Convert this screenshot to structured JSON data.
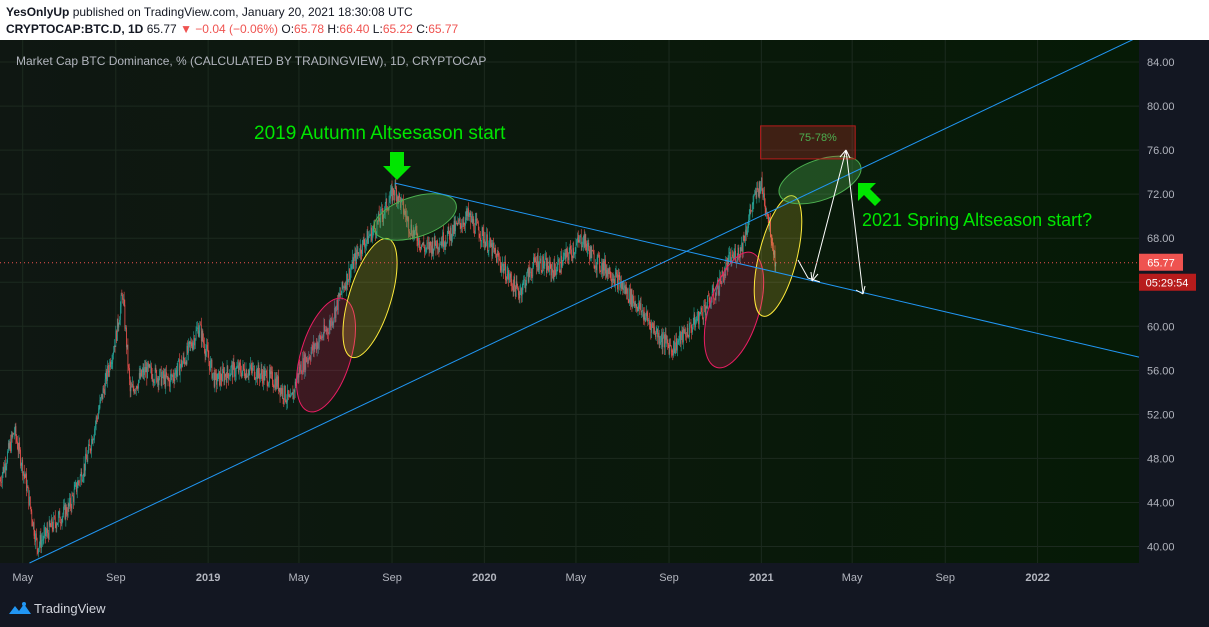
{
  "header": {
    "author": "YesOnlyUp",
    "published": "published on TradingView.com, January 20, 2021 18:30:08 UTC",
    "symbol": "CRYPTOCAP:BTC.D, 1D",
    "last": "65.77",
    "change": "−0.04 (−0.06%)",
    "o_label": "O:",
    "o": "65.78",
    "h_label": "H:",
    "h": "66.40",
    "l_label": "L:",
    "l": "65.22",
    "c_label": "C:",
    "c": "65.77"
  },
  "footer": {
    "brand": "TradingView"
  },
  "colors": {
    "bg": "#131722",
    "up": "#26a69a",
    "down": "#ef5350",
    "trend": "#2196f3",
    "annotation": "#00e600"
  },
  "chart_data": {
    "type": "candlestick",
    "title": "Market Cap BTC Dominance, % (CALCULATED BY TRADINGVIEW), 1D, CRYPTOCAP",
    "ylim": [
      38.5,
      86
    ],
    "yticks": [
      40,
      44,
      48,
      52,
      56,
      60,
      64,
      68,
      72,
      76,
      80,
      84
    ],
    "ytick_labels": [
      "40.00",
      "44.00",
      "48.00",
      "52.00",
      "56.00",
      "60.00",
      "64.00",
      "68.00",
      "72.00",
      "76.00",
      "80.00",
      "84.00"
    ],
    "xlim": [
      "2018-04-01",
      "2022-05-15"
    ],
    "xticks": [
      {
        "label": "May",
        "date": "2018-05-01",
        "bold": false
      },
      {
        "label": "Sep",
        "date": "2018-09-01",
        "bold": false
      },
      {
        "label": "2019",
        "date": "2019-01-01",
        "bold": true
      },
      {
        "label": "May",
        "date": "2019-05-01",
        "bold": false
      },
      {
        "label": "Sep",
        "date": "2019-09-01",
        "bold": false
      },
      {
        "label": "2020",
        "date": "2020-01-01",
        "bold": true
      },
      {
        "label": "May",
        "date": "2020-05-01",
        "bold": false
      },
      {
        "label": "Sep",
        "date": "2020-09-01",
        "bold": false
      },
      {
        "label": "2021",
        "date": "2021-01-01",
        "bold": true
      },
      {
        "label": "May",
        "date": "2021-05-01",
        "bold": false
      },
      {
        "label": "Sep",
        "date": "2021-09-01",
        "bold": false
      },
      {
        "label": "2022",
        "date": "2022-01-01",
        "bold": true
      }
    ],
    "price_path": [
      [
        "2018-04-01",
        46
      ],
      [
        "2018-04-20",
        50.5
      ],
      [
        "2018-05-05",
        46
      ],
      [
        "2018-05-20",
        40
      ],
      [
        "2018-06-10",
        42
      ],
      [
        "2018-07-01",
        43.5
      ],
      [
        "2018-07-25",
        48
      ],
      [
        "2018-08-15",
        54
      ],
      [
        "2018-09-01",
        59
      ],
      [
        "2018-09-10",
        63
      ],
      [
        "2018-09-20",
        54
      ],
      [
        "2018-10-10",
        56
      ],
      [
        "2018-11-10",
        55
      ],
      [
        "2018-12-01",
        57
      ],
      [
        "2018-12-20",
        60
      ],
      [
        "2019-01-10",
        55
      ],
      [
        "2019-02-01",
        56
      ],
      [
        "2019-03-01",
        56
      ],
      [
        "2019-04-01",
        55
      ],
      [
        "2019-04-20",
        53
      ],
      [
        "2019-05-01",
        56
      ],
      [
        "2019-05-20",
        58
      ],
      [
        "2019-06-10",
        60
      ],
      [
        "2019-07-01",
        64
      ],
      [
        "2019-07-20",
        67
      ],
      [
        "2019-08-10",
        69
      ],
      [
        "2019-08-25",
        71
      ],
      [
        "2019-09-05",
        72.5
      ],
      [
        "2019-09-25",
        69
      ],
      [
        "2019-10-15",
        67
      ],
      [
        "2019-11-10",
        68
      ],
      [
        "2019-12-10",
        70
      ],
      [
        "2020-01-01",
        68
      ],
      [
        "2020-01-20",
        66
      ],
      [
        "2020-02-15",
        63
      ],
      [
        "2020-03-10",
        66
      ],
      [
        "2020-04-01",
        65
      ],
      [
        "2020-05-10",
        68
      ],
      [
        "2020-05-25",
        66
      ],
      [
        "2020-06-15",
        65
      ],
      [
        "2020-07-20",
        62
      ],
      [
        "2020-08-20",
        59
      ],
      [
        "2020-09-05",
        58
      ],
      [
        "2020-10-01",
        60
      ],
      [
        "2020-11-01",
        63
      ],
      [
        "2020-11-20",
        66
      ],
      [
        "2020-12-05",
        67
      ],
      [
        "2020-12-20",
        71
      ],
      [
        "2020-12-31",
        73
      ],
      [
        "2021-01-10",
        70
      ],
      [
        "2021-01-20",
        65.77
      ]
    ],
    "last_price": 65.77,
    "last_price_label": "65.77",
    "countdown": "05:29:54",
    "trendlines": [
      {
        "name": "ascending support",
        "from": [
          "2018-05-10",
          38.5
        ],
        "to": [
          "2022-05-15",
          86.3
        ]
      },
      {
        "name": "descending resistance",
        "from": [
          "2019-09-05",
          73
        ],
        "to": [
          "2022-05-15",
          57.2
        ]
      }
    ],
    "zones": [
      {
        "label": "75-78%",
        "from": "2020-12-31",
        "to": "2021-05-05",
        "y0": 75.2,
        "y1": 78.2
      }
    ],
    "annotations": [
      {
        "text": "2019 Autumn Altsesason start"
      },
      {
        "text": "2021 Spring Altseason start?"
      }
    ]
  }
}
